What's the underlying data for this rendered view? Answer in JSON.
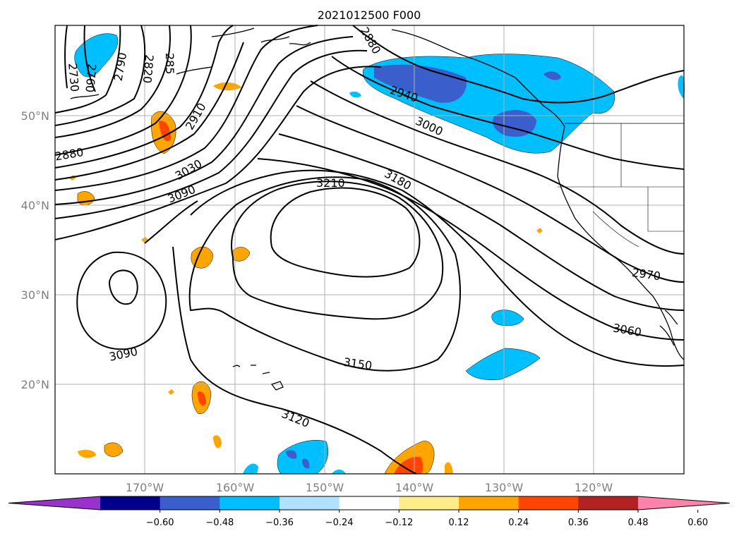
{
  "title": "2021012500 F000",
  "map": {
    "lat_labels": [
      "50°N",
      "40°N",
      "30°N",
      "20°N"
    ],
    "lon_labels": [
      "170°W",
      "160°W",
      "150°W",
      "140°W",
      "130°W",
      "120°W"
    ],
    "contour_labels": [
      "2730",
      "2760",
      "2790",
      "2820",
      "285",
      "2880",
      "2880",
      "2910",
      "2940",
      "3000",
      "3030",
      "3090",
      "3210",
      "3180",
      "2970",
      "3060",
      "3090",
      "3150",
      "3120"
    ]
  },
  "colorbar": {
    "ticks": [
      "−0.60",
      "−0.48",
      "−0.36",
      "−0.24",
      "−0.12",
      "0.12",
      "0.24",
      "0.36",
      "0.48",
      "0.60"
    ],
    "colors": [
      "#9932cc",
      "#00008b",
      "#3a5fcd",
      "#00bfff",
      "#b0e2ff",
      "#ffffff",
      "#ffec8b",
      "#ffa500",
      "#ff4500",
      "#b22222",
      "#ff82ab"
    ]
  },
  "colors": {
    "grid": "#b0b0b0",
    "contour": "#000000",
    "positive_low": "#ffec8b",
    "positive_mid": "#ffa500",
    "positive_high": "#ff4500",
    "negative_low": "#b0e2ff",
    "negative_mid": "#00bfff",
    "negative_high": "#3a5fcd"
  }
}
